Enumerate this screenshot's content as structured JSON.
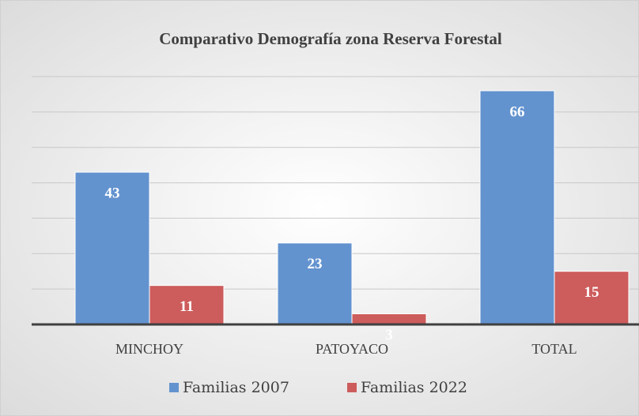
{
  "chart_data": {
    "type": "bar",
    "title": "Comparativo Demografía zona Reserva Forestal",
    "categories": [
      "MINCHOY",
      "PATOYACO",
      "TOTAL"
    ],
    "series": [
      {
        "name": "Familias 2007",
        "color": "#6393cf",
        "values": [
          43,
          23,
          66
        ]
      },
      {
        "name": "Familias 2022",
        "color": "#cd5c5c",
        "values": [
          11,
          3,
          15
        ]
      }
    ],
    "ylim": [
      0,
      70
    ],
    "yticks": [
      0,
      10,
      20,
      30,
      40,
      50,
      60,
      70
    ],
    "grid": true,
    "legend": "bottom"
  }
}
